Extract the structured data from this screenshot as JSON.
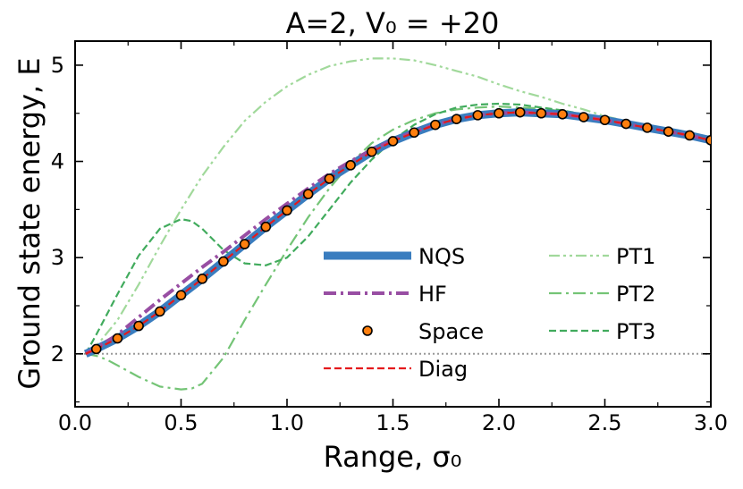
{
  "chart_data": {
    "type": "line",
    "title": "A=2, V₀ = +20",
    "xlabel": "Range, σ₀",
    "ylabel": "Ground state energy, E",
    "xlim": [
      0.0,
      3.0
    ],
    "ylim": [
      1.45,
      5.25
    ],
    "xticks": [
      0.0,
      0.5,
      1.0,
      1.5,
      2.0,
      2.5,
      3.0
    ],
    "xtick_labels": [
      "0.0",
      "0.5",
      "1.0",
      "1.5",
      "2.0",
      "2.5",
      "3.0"
    ],
    "yticks": [
      2,
      3,
      4,
      5
    ],
    "ytick_labels": [
      "2",
      "3",
      "4",
      "5"
    ],
    "reference_line": {
      "y": 2.0,
      "style": "dotted",
      "color": "#999999"
    },
    "legend_position": "center-bottom",
    "series": [
      {
        "name": "NQS",
        "style": "solid",
        "color": "#3a7dbf",
        "x": [
          0.05,
          0.1,
          0.2,
          0.3,
          0.4,
          0.5,
          0.6,
          0.7,
          0.8,
          0.9,
          1.0,
          1.1,
          1.2,
          1.3,
          1.4,
          1.5,
          1.6,
          1.7,
          1.8,
          1.9,
          2.0,
          2.1,
          2.2,
          2.3,
          2.4,
          2.5,
          2.6,
          2.7,
          2.8,
          2.9,
          3.0
        ],
        "y": [
          2.0,
          2.05,
          2.16,
          2.29,
          2.44,
          2.61,
          2.78,
          2.96,
          3.14,
          3.32,
          3.49,
          3.66,
          3.82,
          3.96,
          4.1,
          4.21,
          4.3,
          4.38,
          4.44,
          4.48,
          4.5,
          4.51,
          4.5,
          4.49,
          4.46,
          4.43,
          4.39,
          4.35,
          4.31,
          4.27,
          4.22
        ]
      },
      {
        "name": "HF",
        "style": "dashdot",
        "color": "#984ea3",
        "x": [
          0.05,
          0.1,
          0.2,
          0.3,
          0.4,
          0.5,
          0.6,
          0.7,
          0.8,
          0.9,
          1.0,
          1.1,
          1.2,
          1.3,
          1.4,
          1.5,
          1.6,
          1.7,
          1.8,
          1.9,
          2.0,
          2.1,
          2.2,
          2.3,
          2.4,
          2.5,
          2.6,
          2.7,
          2.8,
          2.9,
          3.0
        ],
        "y": [
          2.0,
          2.06,
          2.2,
          2.38,
          2.56,
          2.73,
          2.9,
          3.06,
          3.23,
          3.4,
          3.56,
          3.72,
          3.87,
          4.0,
          4.12,
          4.22,
          4.31,
          4.38,
          4.44,
          4.48,
          4.5,
          4.51,
          4.5,
          4.49,
          4.46,
          4.43,
          4.39,
          4.35,
          4.31,
          4.27,
          4.22
        ]
      },
      {
        "name": "Space",
        "style": "markers",
        "color": "#ff7f0e",
        "x": [
          0.1,
          0.2,
          0.3,
          0.4,
          0.5,
          0.6,
          0.7,
          0.8,
          0.9,
          1.0,
          1.1,
          1.2,
          1.3,
          1.4,
          1.5,
          1.6,
          1.7,
          1.8,
          1.9,
          2.0,
          2.1,
          2.2,
          2.3,
          2.4,
          2.5,
          2.6,
          2.7,
          2.8,
          2.9,
          3.0
        ],
        "y": [
          2.05,
          2.16,
          2.29,
          2.44,
          2.61,
          2.78,
          2.96,
          3.14,
          3.32,
          3.49,
          3.66,
          3.82,
          3.96,
          4.1,
          4.21,
          4.3,
          4.38,
          4.44,
          4.48,
          4.5,
          4.51,
          4.5,
          4.49,
          4.46,
          4.43,
          4.39,
          4.35,
          4.31,
          4.27,
          4.22
        ]
      },
      {
        "name": "Diag",
        "style": "dashed",
        "color": "#e41a1c",
        "x": [
          0.05,
          0.1,
          0.2,
          0.3,
          0.4,
          0.5,
          0.6,
          0.7,
          0.8,
          0.9,
          1.0,
          1.1,
          1.2,
          1.3,
          1.4,
          1.5,
          1.6,
          1.7,
          1.8,
          1.9,
          2.0,
          2.1,
          2.2,
          2.3,
          2.4,
          2.5,
          2.6,
          2.7,
          2.8,
          2.9,
          3.0
        ],
        "y": [
          2.0,
          2.05,
          2.16,
          2.29,
          2.44,
          2.61,
          2.78,
          2.96,
          3.14,
          3.32,
          3.49,
          3.66,
          3.82,
          3.96,
          4.1,
          4.21,
          4.3,
          4.38,
          4.44,
          4.48,
          4.5,
          4.51,
          4.5,
          4.49,
          4.46,
          4.43,
          4.39,
          4.35,
          4.31,
          4.27,
          4.22
        ]
      },
      {
        "name": "PT1",
        "style": "dashdotdot",
        "color": "#a1d99b",
        "x": [
          0.05,
          0.1,
          0.2,
          0.3,
          0.4,
          0.5,
          0.6,
          0.7,
          0.8,
          0.9,
          1.0,
          1.1,
          1.2,
          1.3,
          1.4,
          1.5,
          1.6,
          1.7,
          1.8,
          1.9,
          2.0,
          2.1,
          2.2,
          2.3,
          2.4,
          2.5,
          2.6,
          2.7,
          2.8,
          2.9,
          3.0
        ],
        "y": [
          2.0,
          2.08,
          2.35,
          2.72,
          3.12,
          3.5,
          3.85,
          4.15,
          4.42,
          4.62,
          4.78,
          4.9,
          4.99,
          5.04,
          5.07,
          5.07,
          5.05,
          5.0,
          4.94,
          4.88,
          4.8,
          4.73,
          4.67,
          4.6,
          4.54,
          4.47,
          4.42,
          4.37,
          4.32,
          4.27,
          4.23
        ]
      },
      {
        "name": "PT2",
        "style": "dashdot",
        "color": "#74c476",
        "x": [
          0.05,
          0.1,
          0.15,
          0.2,
          0.3,
          0.4,
          0.5,
          0.55,
          0.6,
          0.7,
          0.8,
          0.9,
          1.0,
          1.1,
          1.2,
          1.3,
          1.4,
          1.5,
          1.6,
          1.7,
          1.8,
          1.9,
          2.0,
          2.1,
          2.2,
          2.3,
          2.4,
          2.5,
          2.6,
          2.7,
          2.8,
          2.9,
          3.0
        ],
        "y": [
          2.0,
          1.98,
          1.94,
          1.88,
          1.76,
          1.66,
          1.63,
          1.64,
          1.69,
          1.96,
          2.35,
          2.72,
          3.08,
          3.42,
          3.72,
          3.98,
          4.19,
          4.33,
          4.43,
          4.5,
          4.54,
          4.56,
          4.57,
          4.56,
          4.55,
          4.52,
          4.49,
          4.45,
          4.41,
          4.37,
          4.32,
          4.28,
          4.24
        ]
      },
      {
        "name": "PT3",
        "style": "dashed",
        "color": "#41ab5d",
        "x": [
          0.05,
          0.1,
          0.2,
          0.3,
          0.4,
          0.5,
          0.55,
          0.6,
          0.7,
          0.8,
          0.9,
          1.0,
          1.1,
          1.2,
          1.3,
          1.4,
          1.5,
          1.6,
          1.7,
          1.8,
          1.9,
          2.0,
          2.1,
          2.2,
          2.3,
          2.4,
          2.5,
          2.6,
          2.7,
          2.8,
          2.9,
          3.0
        ],
        "y": [
          2.0,
          2.2,
          2.62,
          3.02,
          3.3,
          3.4,
          3.38,
          3.3,
          3.08,
          2.94,
          2.92,
          3.0,
          3.22,
          3.5,
          3.78,
          4.02,
          4.22,
          4.38,
          4.49,
          4.56,
          4.59,
          4.6,
          4.59,
          4.56,
          4.53,
          4.49,
          4.45,
          4.41,
          4.37,
          4.33,
          4.29,
          4.25
        ]
      }
    ]
  }
}
